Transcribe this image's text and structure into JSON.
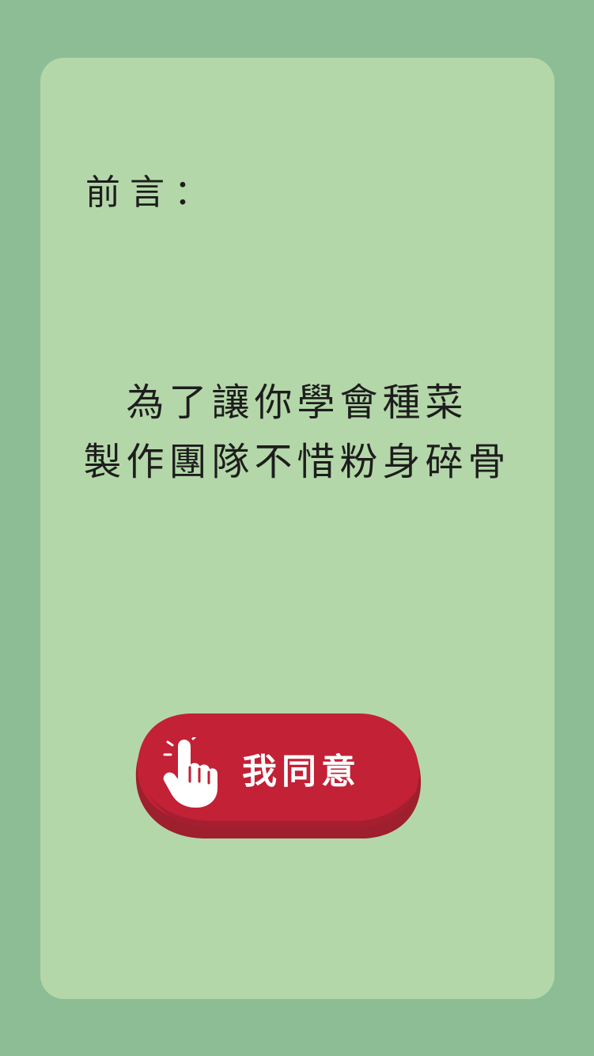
{
  "colors": {
    "page_background": "#8dbd94",
    "card_background": "#b4d7a9",
    "button_fill": "#c22136",
    "button_shadow": "#9e1f2e",
    "button_text": "#ffffff",
    "text": "#1d1d1d"
  },
  "content": {
    "preface_label": "前言：",
    "intro_lines": [
      "為了讓你學會種菜",
      "製作團隊不惜粉身碎骨"
    ]
  },
  "agree_button": {
    "label": "我同意",
    "icon": "pointing-hand-icon"
  }
}
